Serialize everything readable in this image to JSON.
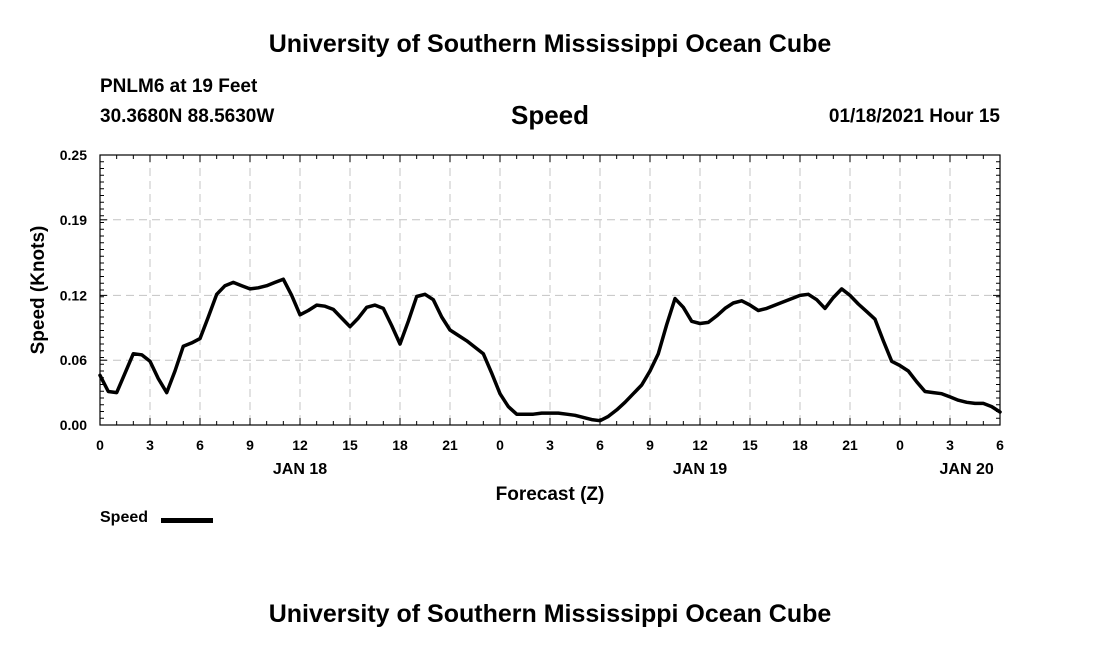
{
  "header": {
    "title_top": "University of Southern Mississippi Ocean Cube",
    "title_bottom": "University of Southern Mississippi Ocean Cube",
    "station": "PNLM6 at 19 Feet",
    "coordinates": "30.3680N 88.5630W",
    "datetime": "01/18/2021 Hour 15"
  },
  "legend": {
    "label": "Speed"
  },
  "chart_data": {
    "type": "line",
    "title": "Speed",
    "xlabel": "Forecast (Z)",
    "ylabel": "Speed (Knots)",
    "xlim": [
      0,
      54
    ],
    "ylim": [
      0,
      0.25
    ],
    "yticks": [
      0,
      0.06,
      0.12,
      0.19,
      0.25
    ],
    "ytick_labels": [
      "0.00",
      "0.06",
      "0.12",
      "0.19",
      "0.25"
    ],
    "xticks": [
      0,
      3,
      6,
      9,
      12,
      15,
      18,
      21,
      24,
      27,
      30,
      33,
      36,
      39,
      42,
      45,
      48,
      51,
      54
    ],
    "xtick_labels": [
      "0",
      "3",
      "6",
      "9",
      "12",
      "15",
      "18",
      "21",
      "0",
      "3",
      "6",
      "9",
      "12",
      "15",
      "18",
      "21",
      "0",
      "3",
      "6"
    ],
    "date_labels": [
      {
        "x": 12,
        "label": "JAN 18"
      },
      {
        "x": 36,
        "label": "JAN 19"
      },
      {
        "x": 52,
        "label": "JAN 20"
      }
    ],
    "grid": true,
    "series": [
      {
        "name": "Speed",
        "x": [
          0,
          0.5,
          1,
          1.5,
          2,
          2.5,
          3,
          3.5,
          4,
          4.5,
          5,
          5.5,
          6,
          6.5,
          7,
          7.5,
          8,
          8.5,
          9,
          9.5,
          10,
          10.5,
          11,
          11.5,
          12,
          12.5,
          13,
          13.5,
          14,
          14.5,
          15,
          15.5,
          16,
          16.5,
          17,
          17.5,
          18,
          18.5,
          19,
          19.5,
          20,
          20.5,
          21,
          21.5,
          22,
          22.5,
          23,
          23.5,
          24,
          24.5,
          25,
          25.5,
          26,
          26.5,
          27,
          27.5,
          28,
          28.5,
          29,
          29.5,
          30,
          30.5,
          31,
          31.5,
          32,
          32.5,
          33,
          33.5,
          34,
          34.5,
          35,
          35.5,
          36,
          36.5,
          37,
          37.5,
          38,
          38.5,
          39,
          39.5,
          40,
          40.5,
          41,
          41.5,
          42,
          42.5,
          43,
          43.5,
          44,
          44.5,
          45,
          45.5,
          46,
          46.5,
          47,
          47.5,
          48,
          48.5,
          49,
          49.5,
          50,
          50.5,
          51,
          51.5,
          52,
          52.5,
          53,
          53.5,
          54
        ],
        "values": [
          0.046,
          0.031,
          0.03,
          0.048,
          0.066,
          0.065,
          0.059,
          0.043,
          0.03,
          0.05,
          0.073,
          0.076,
          0.08,
          0.1,
          0.121,
          0.129,
          0.132,
          0.129,
          0.126,
          0.127,
          0.129,
          0.132,
          0.135,
          0.12,
          0.102,
          0.106,
          0.111,
          0.11,
          0.107,
          0.099,
          0.091,
          0.099,
          0.109,
          0.111,
          0.108,
          0.092,
          0.075,
          0.096,
          0.119,
          0.121,
          0.116,
          0.1,
          0.088,
          0.083,
          0.078,
          0.072,
          0.066,
          0.048,
          0.029,
          0.017,
          0.01,
          0.01,
          0.01,
          0.011,
          0.011,
          0.011,
          0.01,
          0.009,
          0.007,
          0.005,
          0.004,
          0.008,
          0.014,
          0.021,
          0.029,
          0.037,
          0.05,
          0.066,
          0.093,
          0.117,
          0.109,
          0.096,
          0.094,
          0.095,
          0.101,
          0.108,
          0.113,
          0.115,
          0.111,
          0.106,
          0.108,
          0.111,
          0.114,
          0.117,
          0.12,
          0.121,
          0.116,
          0.108,
          0.118,
          0.126,
          0.12,
          0.112,
          0.105,
          0.098,
          0.078,
          0.059,
          0.055,
          0.05,
          0.04,
          0.031,
          0.03,
          0.029,
          0.026,
          0.023,
          0.021,
          0.02,
          0.02,
          0.017,
          0.012
        ]
      }
    ]
  }
}
